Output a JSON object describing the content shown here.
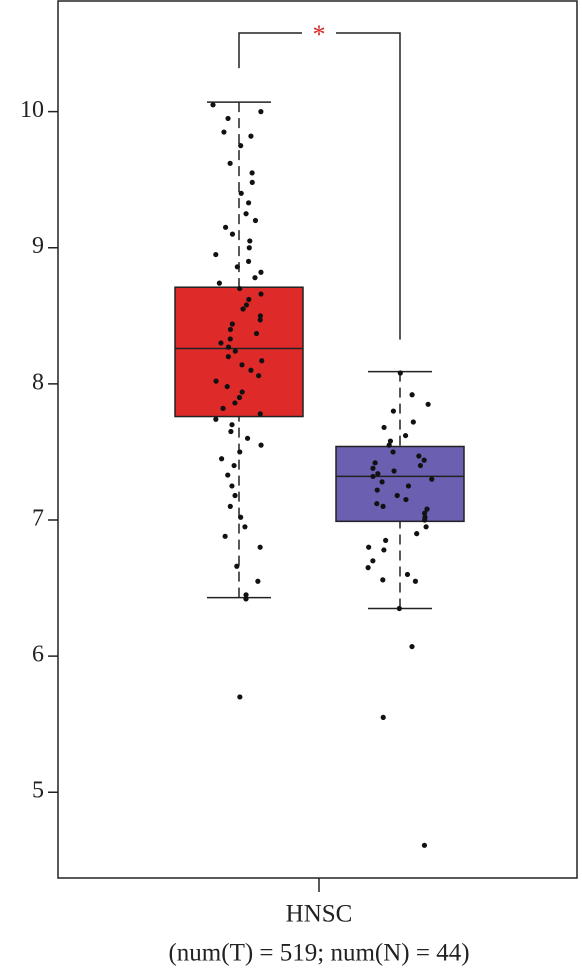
{
  "chart_data": {
    "type": "box",
    "categories": [
      "HNSC"
    ],
    "x_label": "(num(T) = 519; num(N) = 44)",
    "ylim": [
      4.37,
      10.82
    ],
    "yticks": [
      5,
      6,
      7,
      8,
      9,
      10
    ],
    "annotations": [
      {
        "text": "*",
        "color": "#d62728"
      }
    ],
    "series": [
      {
        "color": "#df2a2a",
        "whisker_low": 6.43,
        "q1": 7.76,
        "median": 8.26,
        "q3": 8.71,
        "whisker_high": 10.07,
        "points": [
          10.05,
          10.0,
          9.95,
          9.85,
          9.82,
          9.75,
          9.62,
          9.55,
          9.48,
          9.4,
          9.33,
          9.25,
          9.2,
          9.15,
          9.1,
          9.05,
          9.0,
          8.95,
          8.9,
          8.86,
          8.82,
          8.78,
          8.74,
          8.7,
          8.66,
          8.62,
          8.58,
          8.55,
          8.5,
          8.47,
          8.44,
          8.4,
          8.37,
          8.33,
          8.3,
          8.27,
          8.24,
          8.2,
          8.17,
          8.14,
          8.1,
          8.06,
          8.02,
          7.98,
          7.94,
          7.9,
          7.86,
          7.82,
          7.78,
          7.74,
          7.7,
          7.65,
          7.6,
          7.55,
          7.5,
          7.45,
          7.4,
          7.33,
          7.25,
          7.18,
          7.1,
          7.02,
          6.95,
          6.88,
          6.8,
          6.66,
          6.55,
          6.45,
          6.42,
          5.7
        ]
      },
      {
        "color": "#6a5fb0",
        "whisker_low": 6.35,
        "q1": 6.99,
        "median": 7.32,
        "q3": 7.54,
        "whisker_high": 8.09,
        "points": [
          8.08,
          7.92,
          7.85,
          7.8,
          7.72,
          7.68,
          7.62,
          7.58,
          7.55,
          7.5,
          7.47,
          7.44,
          7.42,
          7.4,
          7.38,
          7.36,
          7.34,
          7.32,
          7.3,
          7.28,
          7.25,
          7.22,
          7.18,
          7.15,
          7.12,
          7.08,
          7.05,
          7.02,
          7.0,
          6.95,
          6.9,
          6.85,
          6.8,
          6.78,
          6.7,
          6.65,
          6.6,
          6.56,
          6.55,
          6.35,
          6.07,
          5.55,
          4.61,
          7.1
        ]
      }
    ]
  }
}
